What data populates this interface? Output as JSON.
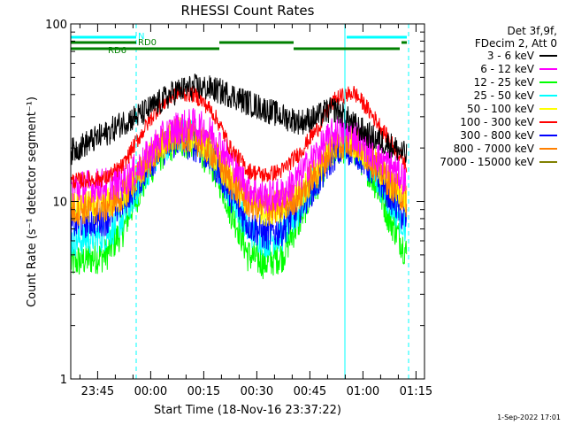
{
  "chart_data": {
    "type": "line",
    "title": "RHESSI Count Rates",
    "xlabel": "Start Time (18-Nov-16 23:37:22)",
    "ylabel": "Count Rate (s⁻¹ detector segment⁻¹)",
    "yscale": "log",
    "ylim": [
      1,
      100
    ],
    "xlim_minutes_after_start": [
      0,
      100
    ],
    "x_tick_labels": [
      "23:45",
      "00:00",
      "00:15",
      "00:30",
      "00:45",
      "01:00",
      "01:15"
    ],
    "x_tick_minutes": [
      7.6,
      22.6,
      37.6,
      52.6,
      67.6,
      82.6,
      97.6
    ],
    "y_tick_labels": [
      "1",
      "10",
      "100"
    ],
    "y_tick_values": [
      1,
      10,
      100
    ],
    "legend_header": [
      "Det 3f,9f,",
      "FDecim 2, Att 0"
    ],
    "series": [
      {
        "name": "3 - 6 keV",
        "color": "#000000",
        "x": [
          0,
          10,
          15,
          20,
          25,
          30,
          35,
          40,
          45,
          50,
          55,
          60,
          65,
          70,
          72,
          75,
          80,
          85,
          90,
          95
        ],
        "y": [
          19,
          24,
          28,
          31,
          36,
          42,
          44,
          43,
          40,
          36,
          33,
          30,
          28,
          30,
          32,
          33,
          27,
          23,
          21,
          18
        ]
      },
      {
        "name": "6 - 12 keV",
        "color": "#ff00ff",
        "x": [
          0,
          10,
          15,
          20,
          25,
          30,
          35,
          40,
          45,
          50,
          55,
          60,
          65,
          70,
          75,
          80,
          85,
          90,
          95
        ],
        "y": [
          12,
          12.5,
          13,
          16,
          22,
          26,
          27,
          24,
          17,
          12,
          10.5,
          11,
          14,
          19,
          25,
          24,
          19,
          16,
          13
        ]
      },
      {
        "name": "12 - 25 keV",
        "color": "#00ff00",
        "x": [
          0,
          10,
          15,
          20,
          25,
          30,
          35,
          40,
          45,
          50,
          55,
          60,
          65,
          70,
          75,
          80,
          85,
          90,
          95
        ],
        "y": [
          4.5,
          5,
          7,
          12,
          18,
          22,
          21,
          16,
          9,
          5,
          4.5,
          5,
          8,
          13,
          20,
          20,
          14,
          8,
          5
        ]
      },
      {
        "name": "25 - 50 keV",
        "color": "#00ffff",
        "x": [
          0,
          10,
          15,
          20,
          25,
          30,
          35,
          40,
          45,
          50,
          55,
          60,
          65,
          70,
          75,
          80,
          85,
          90,
          95
        ],
        "y": [
          6,
          6.5,
          8,
          13,
          19,
          24,
          23,
          18,
          11,
          7,
          6,
          6.5,
          9,
          14,
          21,
          21,
          15,
          10,
          7
        ]
      },
      {
        "name": "50 - 100 keV",
        "color": "#ffff00",
        "x": [
          0,
          10,
          15,
          20,
          25,
          30,
          35,
          40,
          45,
          50,
          55,
          60,
          65,
          70,
          75,
          80,
          85,
          90,
          95
        ],
        "y": [
          9,
          9.5,
          11,
          15,
          20,
          24,
          23,
          19,
          13,
          10,
          9,
          9.5,
          11,
          15,
          21,
          22,
          17,
          13,
          10
        ]
      },
      {
        "name": "100 - 300 keV",
        "color": "#ff0000",
        "x": [
          0,
          10,
          15,
          20,
          25,
          30,
          35,
          40,
          45,
          50,
          55,
          60,
          65,
          70,
          75,
          80,
          85,
          90,
          95
        ],
        "y": [
          13,
          13.5,
          16,
          24,
          34,
          41,
          40,
          32,
          20,
          15,
          14,
          15,
          19,
          26,
          38,
          41,
          31,
          22,
          16
        ]
      },
      {
        "name": "300 - 800 keV",
        "color": "#0000ff",
        "x": [
          0,
          10,
          15,
          20,
          25,
          30,
          35,
          40,
          45,
          50,
          55,
          60,
          65,
          70,
          75,
          80,
          85,
          90,
          95
        ],
        "y": [
          7.5,
          8,
          10,
          14,
          19,
          22,
          21,
          17,
          11,
          7.5,
          6.5,
          7,
          9.5,
          13,
          19,
          20,
          15,
          11,
          7.5
        ]
      },
      {
        "name": "800 - 7000 keV",
        "color": "#ff8000",
        "x": [
          0,
          10,
          15,
          20,
          25,
          30,
          35,
          40,
          45,
          50,
          55,
          60,
          65,
          70,
          75,
          80,
          85,
          90,
          95
        ],
        "y": [
          9,
          9.5,
          11,
          15,
          20,
          24,
          23,
          19,
          13,
          10,
          9,
          9.5,
          11,
          15,
          21,
          22,
          17,
          13,
          10
        ]
      },
      {
        "name": "7000 - 15000 keV",
        "color": "#808000",
        "x": [],
        "y": []
      }
    ],
    "attenuator_bars": [
      {
        "label": "N",
        "color": "#00ffff",
        "row": 0,
        "segments": [
          [
            0,
            18.5
          ],
          [
            78,
            95
          ]
        ]
      },
      {
        "label": "RD0",
        "color": "#008000",
        "row": 1,
        "segments": [
          [
            0,
            18.5
          ],
          [
            42,
            63
          ],
          [
            93.5,
            95
          ]
        ]
      },
      {
        "label": "RD6",
        "color": "#008000",
        "row": 2,
        "segments": [
          [
            0,
            18.5
          ],
          [
            18.5,
            42
          ],
          [
            63,
            93
          ]
        ]
      }
    ],
    "vertical_markers": [
      {
        "x": 0,
        "color": "#00ffff",
        "style": "solid"
      },
      {
        "x": 18.5,
        "color": "#00ffff",
        "style": "dashed"
      },
      {
        "x": 77.5,
        "color": "#00ffff",
        "style": "solid"
      },
      {
        "x": 95.5,
        "color": "#00ffff",
        "style": "dashed"
      }
    ]
  },
  "footer_stamp": "1-Sep-2022 17:01"
}
